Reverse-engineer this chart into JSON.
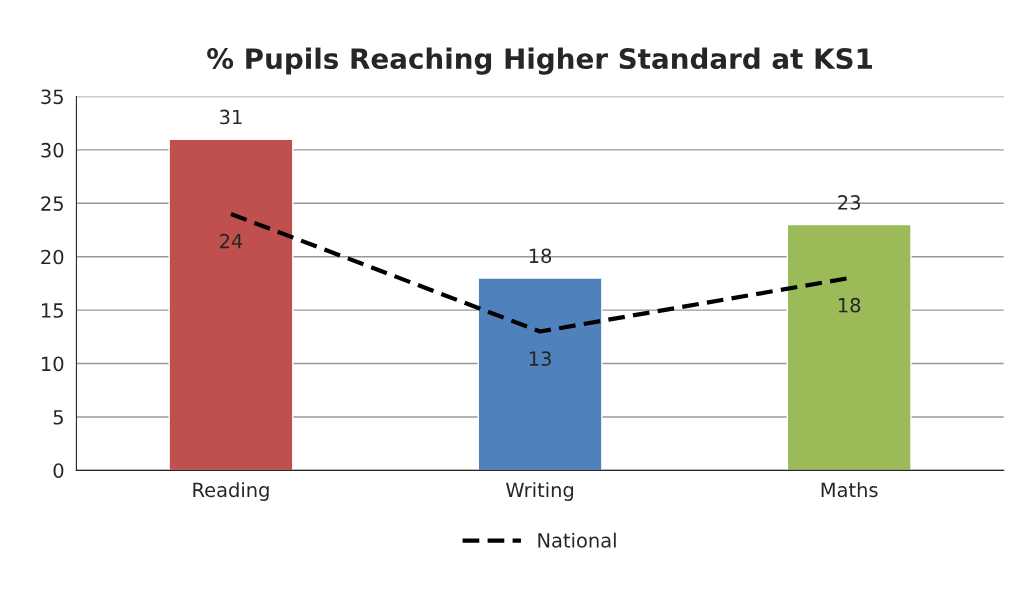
{
  "chart_data": {
    "type": "bar",
    "title": "% Pupils Reaching Higher Standard at KS1",
    "categories": [
      "Reading",
      "Writing",
      "Maths"
    ],
    "series": [
      {
        "colors": [
          "#c0504d",
          "#4f81bd",
          "#9bbb59"
        ],
        "values": [
          31,
          18,
          23
        ]
      },
      {
        "type": "line",
        "name": "National",
        "color": "#000000",
        "line_style": "dashed",
        "values": [
          24,
          13,
          18
        ]
      }
    ],
    "ylim": [
      0,
      35
    ],
    "yticks": [
      0,
      5,
      10,
      15,
      20,
      25,
      30,
      35
    ],
    "grid": "y",
    "legend": "bottom",
    "data_labels": true
  }
}
